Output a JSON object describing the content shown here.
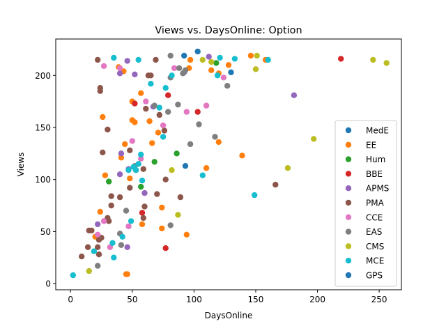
{
  "chart_data": {
    "type": "scatter",
    "title": "Views vs. DaysOnline: Option",
    "xlabel": "DaysOnline",
    "ylabel": "Views",
    "xlim": [
      -12,
      268
    ],
    "ylim": [
      -6,
      235
    ],
    "xticks": [
      0,
      50,
      100,
      150,
      200,
      250
    ],
    "yticks": [
      0,
      50,
      100,
      150,
      200
    ],
    "grid": false,
    "legend_position": "center-right",
    "series": [
      {
        "name": "MedE",
        "color": "#1f77b4",
        "points": [
          [
            92,
            219
          ],
          [
            103,
            223
          ]
        ]
      },
      {
        "name": "EE",
        "color": "#ff7f0e",
        "points": [
          [
            39,
            208
          ],
          [
            43,
            204
          ],
          [
            57,
            183
          ],
          [
            50,
            175
          ],
          [
            52,
            155
          ],
          [
            50,
            157
          ],
          [
            64,
            156
          ],
          [
            26,
            160
          ],
          [
            28,
            104
          ],
          [
            44,
            134
          ],
          [
            41,
            121
          ],
          [
            48,
            101
          ],
          [
            24,
            69
          ],
          [
            20,
            45
          ],
          [
            46,
            9
          ],
          [
            45,
            9
          ],
          [
            58,
            57
          ],
          [
            74,
            53
          ],
          [
            74,
            73
          ],
          [
            66,
            135
          ],
          [
            71,
            145
          ],
          [
            94,
            47
          ],
          [
            110,
            111
          ],
          [
            120,
            136
          ],
          [
            139,
            123
          ],
          [
            146,
            219
          ],
          [
            158,
            215
          ],
          [
            96,
            207
          ],
          [
            128,
            210
          ],
          [
            120,
            202
          ],
          [
            114,
            205
          ],
          [
            97,
            215
          ]
        ]
      },
      {
        "name": "Hum",
        "color": "#2ca02c",
        "points": [
          [
            31,
            98
          ],
          [
            57,
            93
          ],
          [
            86,
            125
          ],
          [
            68,
            117
          ],
          [
            118,
            212
          ]
        ]
      },
      {
        "name": "BBE",
        "color": "#d62728",
        "points": [
          [
            52,
            173
          ],
          [
            79,
            181
          ],
          [
            103,
            165
          ],
          [
            58,
            68
          ],
          [
            77,
            34
          ],
          [
            219,
            216
          ]
        ]
      },
      {
        "name": "APMS",
        "color": "#9467bd",
        "points": [
          [
            46,
            214
          ],
          [
            40,
            202
          ],
          [
            52,
            201
          ],
          [
            67,
            170
          ],
          [
            60,
            87
          ],
          [
            41,
            125
          ],
          [
            47,
            110
          ],
          [
            40,
            105
          ],
          [
            22,
            57
          ],
          [
            46,
            35
          ],
          [
            92,
            203
          ],
          [
            112,
            218
          ],
          [
            181,
            181
          ]
        ]
      },
      {
        "name": "PMA",
        "color": "#8c564b",
        "points": [
          [
            22,
            215
          ],
          [
            24,
            188
          ],
          [
            24,
            185
          ],
          [
            30,
            148
          ],
          [
            26,
            126
          ],
          [
            48,
            128
          ],
          [
            61,
            168
          ],
          [
            72,
            162
          ],
          [
            76,
            147
          ],
          [
            59,
            110
          ],
          [
            53,
            109
          ],
          [
            48,
            92
          ],
          [
            40,
            83
          ],
          [
            33,
            75
          ],
          [
            33,
            84
          ],
          [
            31,
            60
          ],
          [
            30,
            63
          ],
          [
            17,
            51
          ],
          [
            15,
            51
          ],
          [
            14,
            35
          ],
          [
            22,
            35
          ],
          [
            23,
            28
          ],
          [
            9,
            26
          ],
          [
            23,
            42
          ],
          [
            25,
            44
          ],
          [
            60,
            74
          ],
          [
            59,
            63
          ],
          [
            70,
            86
          ],
          [
            77,
            100
          ],
          [
            89,
            83
          ],
          [
            63,
            200
          ],
          [
            65,
            200
          ],
          [
            69,
            215
          ],
          [
            166,
            95
          ]
        ]
      },
      {
        "name": "CCE",
        "color": "#e377c2",
        "points": [
          [
            27,
            209
          ],
          [
            40,
            207
          ],
          [
            61,
            175
          ],
          [
            75,
            152
          ],
          [
            94,
            165
          ],
          [
            110,
            171
          ],
          [
            124,
            198
          ],
          [
            84,
            207
          ],
          [
            50,
            137
          ],
          [
            57,
            120
          ],
          [
            27,
            60
          ],
          [
            47,
            55
          ],
          [
            32,
            35
          ],
          [
            22,
            47
          ]
        ]
      },
      {
        "name": "EAS",
        "color": "#7f7f7f",
        "points": [
          [
            81,
            219
          ],
          [
            81,
            198
          ],
          [
            88,
            207
          ],
          [
            91,
            202
          ],
          [
            93,
            205
          ],
          [
            127,
            190
          ],
          [
            87,
            172
          ],
          [
            79,
            165
          ],
          [
            68,
            171
          ],
          [
            97,
            134
          ],
          [
            104,
            153
          ],
          [
            117,
            141
          ],
          [
            45,
            70
          ],
          [
            52,
            113
          ],
          [
            40,
            48
          ],
          [
            41,
            37
          ],
          [
            22,
            17
          ],
          [
            81,
            56
          ]
        ]
      },
      {
        "name": "CMS",
        "color": "#bcbd22",
        "points": [
          [
            151,
            219
          ],
          [
            150,
            206
          ],
          [
            107,
            215
          ],
          [
            114,
            213
          ],
          [
            82,
            109
          ],
          [
            87,
            66
          ],
          [
            15,
            12
          ],
          [
            176,
            111
          ],
          [
            197,
            139
          ],
          [
            245,
            215
          ],
          [
            256,
            212
          ]
        ]
      },
      {
        "name": "MCE",
        "color": "#17becf",
        "points": [
          [
            35,
            217
          ],
          [
            55,
            215
          ],
          [
            65,
            192
          ],
          [
            72,
            169
          ],
          [
            77,
            188
          ],
          [
            82,
            200
          ],
          [
            75,
            141
          ],
          [
            57,
            124
          ],
          [
            51,
            112
          ],
          [
            55,
            115
          ],
          [
            53,
            109
          ],
          [
            47,
            109
          ],
          [
            58,
            99
          ],
          [
            49,
            60
          ],
          [
            42,
            45
          ],
          [
            34,
            39
          ],
          [
            35,
            25
          ],
          [
            19,
            31
          ],
          [
            2,
            8
          ],
          [
            107,
            104
          ],
          [
            119,
            200
          ],
          [
            121,
            217
          ],
          [
            133,
            216
          ],
          [
            149,
            85
          ],
          [
            160,
            215
          ]
        ]
      },
      {
        "name": "GPS",
        "color": "#1f77b4",
        "points": [
          [
            130,
            203
          ],
          [
            93,
            113
          ]
        ]
      }
    ]
  }
}
